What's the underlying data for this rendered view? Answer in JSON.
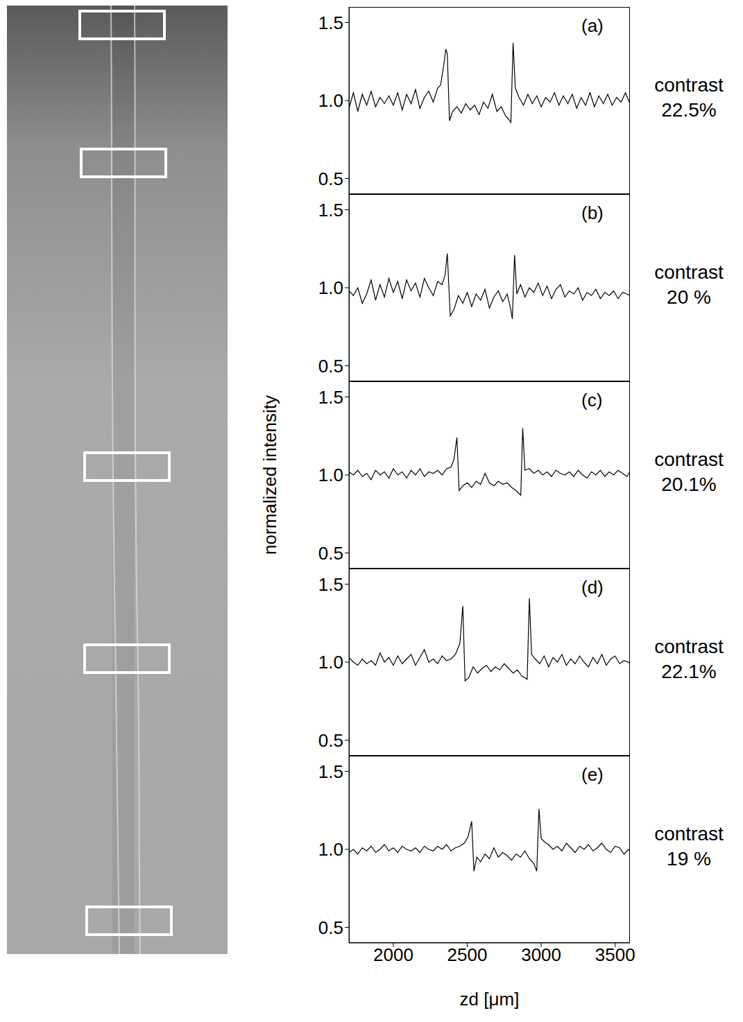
{
  "chart_data": [
    {
      "type": "line",
      "title": "(a)",
      "annotation": "contrast 22.5%",
      "tick_labels": "y",
      "x": [
        1700,
        1730,
        1760,
        1790,
        1820,
        1850,
        1880,
        1910,
        1940,
        1970,
        2000,
        2030,
        2060,
        2090,
        2120,
        2150,
        2180,
        2210,
        2240,
        2270,
        2300,
        2320,
        2340,
        2355,
        2365,
        2380,
        2400,
        2430,
        2460,
        2490,
        2520,
        2550,
        2580,
        2610,
        2640,
        2670,
        2700,
        2730,
        2760,
        2780,
        2795,
        2810,
        2825,
        2850,
        2880,
        2910,
        2940,
        2970,
        3000,
        3030,
        3060,
        3090,
        3120,
        3150,
        3180,
        3210,
        3240,
        3270,
        3300,
        3330,
        3360,
        3390,
        3420,
        3450,
        3480,
        3510,
        3540,
        3570,
        3600
      ],
      "values": [
        0.95,
        1.05,
        0.93,
        1.04,
        0.97,
        1.06,
        0.96,
        1.02,
        0.98,
        1.03,
        0.97,
        1.05,
        0.94,
        1.04,
        0.98,
        1.07,
        0.95,
        1.02,
        1.06,
        0.99,
        1.08,
        1.1,
        1.22,
        1.33,
        1.3,
        0.87,
        0.93,
        0.96,
        0.92,
        0.98,
        0.94,
        0.97,
        0.91,
        0.99,
        0.95,
        1.04,
        0.93,
        0.96,
        0.9,
        0.88,
        0.86,
        1.37,
        1.08,
        1.02,
        0.97,
        1.04,
        0.98,
        1.03,
        0.96,
        1.02,
        0.99,
        1.05,
        0.97,
        1.03,
        0.98,
        1.04,
        0.95,
        1.02,
        0.97,
        1.05,
        0.96,
        1.03,
        0.98,
        1.04,
        0.97,
        1.02,
        0.99,
        1.05,
        0.98
      ],
      "xlim": [
        1700,
        3600
      ],
      "xticks": [
        2000,
        2500,
        3000,
        3500
      ],
      "ylim": [
        0.4,
        1.6
      ],
      "yticks": [
        {
          "value": 0.5,
          "label": "0.5"
        },
        {
          "value": 1.0,
          "label": "1.0"
        },
        {
          "value": 1.5,
          "label": "1.5"
        }
      ],
      "color": "#000000"
    },
    {
      "type": "line",
      "title": "(b)",
      "annotation": "contrast 20 %",
      "tick_labels": "y",
      "x": [
        1700,
        1730,
        1760,
        1790,
        1820,
        1850,
        1880,
        1910,
        1940,
        1970,
        2000,
        2030,
        2060,
        2090,
        2120,
        2150,
        2180,
        2210,
        2240,
        2270,
        2300,
        2330,
        2350,
        2365,
        2385,
        2410,
        2440,
        2470,
        2500,
        2530,
        2560,
        2590,
        2620,
        2650,
        2680,
        2710,
        2740,
        2770,
        2790,
        2805,
        2820,
        2835,
        2860,
        2890,
        2920,
        2950,
        2980,
        3010,
        3040,
        3070,
        3100,
        3130,
        3160,
        3190,
        3220,
        3250,
        3280,
        3310,
        3340,
        3370,
        3400,
        3430,
        3460,
        3490,
        3520,
        3550,
        3580,
        3600
      ],
      "values": [
        0.98,
        0.95,
        1.0,
        0.9,
        0.96,
        1.05,
        0.92,
        1.02,
        0.94,
        1.06,
        0.97,
        1.04,
        0.93,
        1.05,
        0.98,
        1.03,
        0.94,
        1.06,
        1.0,
        0.95,
        1.04,
        1.02,
        1.08,
        1.22,
        0.82,
        0.86,
        0.95,
        0.9,
        0.97,
        0.88,
        0.96,
        0.92,
        0.99,
        0.87,
        0.94,
        0.98,
        0.91,
        0.96,
        0.88,
        0.8,
        1.21,
        0.96,
        1.02,
        0.94,
        1.0,
        0.97,
        1.03,
        0.95,
        1.01,
        0.93,
        0.99,
        1.02,
        0.94,
        0.98,
        0.96,
        1.0,
        0.92,
        0.97,
        0.95,
        0.99,
        0.93,
        0.97,
        0.95,
        0.98,
        0.93,
        0.97,
        0.96,
        0.95
      ],
      "xlim": [
        1700,
        3600
      ],
      "xticks": [
        2000,
        2500,
        3000,
        3500
      ],
      "ylim": [
        0.4,
        1.6
      ],
      "yticks": [
        {
          "value": 0.5,
          "label": "0.5"
        },
        {
          "value": 1.0,
          "label": "1.0"
        },
        {
          "value": 1.5,
          "label": "1.5"
        }
      ],
      "color": "#000000"
    },
    {
      "type": "line",
      "title": "(c)",
      "annotation": "contrast 20.1%",
      "tick_labels": "y",
      "y_label": "normalized intensity",
      "x": [
        1700,
        1730,
        1760,
        1790,
        1820,
        1850,
        1880,
        1910,
        1940,
        1970,
        2000,
        2030,
        2060,
        2090,
        2120,
        2150,
        2180,
        2210,
        2240,
        2270,
        2300,
        2330,
        2360,
        2390,
        2410,
        2430,
        2445,
        2470,
        2500,
        2530,
        2560,
        2590,
        2620,
        2650,
        2680,
        2710,
        2740,
        2770,
        2800,
        2830,
        2850,
        2862,
        2875,
        2890,
        2920,
        2950,
        2980,
        3010,
        3040,
        3070,
        3100,
        3130,
        3160,
        3190,
        3220,
        3250,
        3280,
        3310,
        3340,
        3370,
        3400,
        3430,
        3460,
        3490,
        3520,
        3550,
        3580,
        3600
      ],
      "values": [
        1.02,
        1.0,
        1.03,
        0.99,
        1.01,
        0.97,
        1.03,
        1.0,
        1.02,
        0.98,
        1.04,
        1.0,
        1.02,
        0.98,
        1.03,
        1.0,
        1.04,
        0.99,
        1.02,
        1.01,
        1.03,
        1.0,
        1.04,
        1.05,
        1.1,
        1.24,
        0.9,
        0.93,
        0.95,
        0.92,
        0.96,
        0.94,
        1.01,
        0.95,
        0.93,
        0.96,
        0.94,
        0.95,
        0.92,
        0.9,
        0.88,
        0.87,
        1.3,
        1.03,
        1.04,
        1.01,
        1.03,
        1.0,
        1.02,
        0.99,
        1.03,
        1.01,
        1.0,
        1.02,
        0.99,
        1.03,
        1.0,
        0.98,
        1.02,
        1.0,
        1.03,
        0.99,
        1.02,
        1.0,
        1.03,
        1.01,
        0.99,
        1.02
      ],
      "xlim": [
        1700,
        3600
      ],
      "xticks": [
        2000,
        2500,
        3000,
        3500
      ],
      "ylim": [
        0.4,
        1.6
      ],
      "yticks": [
        {
          "value": 0.5,
          "label": "0.5"
        },
        {
          "value": 1.0,
          "label": "1.0"
        },
        {
          "value": 1.5,
          "label": "1.5"
        }
      ],
      "color": "#000000"
    },
    {
      "type": "line",
      "title": "(d)",
      "annotation": "contrast 22.1%",
      "tick_labels": "y",
      "x": [
        1700,
        1730,
        1760,
        1790,
        1820,
        1850,
        1880,
        1910,
        1940,
        1970,
        2000,
        2030,
        2060,
        2090,
        2120,
        2150,
        2180,
        2210,
        2240,
        2270,
        2300,
        2330,
        2360,
        2390,
        2420,
        2450,
        2470,
        2485,
        2510,
        2540,
        2570,
        2600,
        2630,
        2660,
        2690,
        2720,
        2750,
        2780,
        2810,
        2840,
        2870,
        2890,
        2905,
        2920,
        2935,
        2960,
        2990,
        3020,
        3050,
        3080,
        3110,
        3140,
        3170,
        3200,
        3230,
        3260,
        3290,
        3320,
        3350,
        3380,
        3410,
        3440,
        3470,
        3500,
        3530,
        3560,
        3590,
        3600
      ],
      "values": [
        1.03,
        1.0,
        0.98,
        1.02,
        0.99,
        1.01,
        0.98,
        1.06,
        1.0,
        1.03,
        0.98,
        1.04,
        0.99,
        1.02,
        1.05,
        0.98,
        1.03,
        1.08,
        1.0,
        1.02,
        0.99,
        1.04,
        1.01,
        1.02,
        1.05,
        1.12,
        1.36,
        0.88,
        0.9,
        0.97,
        0.93,
        0.96,
        0.98,
        0.94,
        0.97,
        0.95,
        0.99,
        0.96,
        0.93,
        0.95,
        0.91,
        0.9,
        0.89,
        1.41,
        1.05,
        1.02,
        0.99,
        1.04,
        0.97,
        1.03,
        1.0,
        1.05,
        0.98,
        1.02,
        0.99,
        1.04,
        1.0,
        0.97,
        1.03,
        0.99,
        1.05,
        0.98,
        1.02,
        1.04,
        0.99,
        1.01,
        1.0,
        0.99
      ],
      "xlim": [
        1700,
        3600
      ],
      "xticks": [
        2000,
        2500,
        3000,
        3500
      ],
      "ylim": [
        0.4,
        1.6
      ],
      "yticks": [
        {
          "value": 0.5,
          "label": "0.5"
        },
        {
          "value": 1.0,
          "label": "1.0"
        },
        {
          "value": 1.5,
          "label": "1.5"
        }
      ],
      "color": "#000000"
    },
    {
      "type": "line",
      "title": "(e)",
      "annotation": "contrast 19 %",
      "x_label": "zd [μm]",
      "x": [
        1700,
        1730,
        1760,
        1790,
        1820,
        1850,
        1880,
        1910,
        1940,
        1970,
        2000,
        2030,
        2060,
        2090,
        2120,
        2150,
        2180,
        2210,
        2240,
        2270,
        2300,
        2330,
        2360,
        2390,
        2420,
        2450,
        2480,
        2505,
        2530,
        2545,
        2565,
        2590,
        2620,
        2650,
        2680,
        2710,
        2740,
        2770,
        2800,
        2830,
        2860,
        2890,
        2920,
        2950,
        2970,
        2985,
        3000,
        3020,
        3050,
        3080,
        3110,
        3140,
        3170,
        3200,
        3230,
        3260,
        3290,
        3320,
        3350,
        3380,
        3410,
        3440,
        3470,
        3500,
        3530,
        3560,
        3590,
        3600
      ],
      "values": [
        0.98,
        1.0,
        0.97,
        1.01,
        0.99,
        1.02,
        0.98,
        1.0,
        1.03,
        0.99,
        1.01,
        0.98,
        1.02,
        1.0,
        0.99,
        1.01,
        0.98,
        1.02,
        1.0,
        0.99,
        1.02,
        1.0,
        1.03,
        0.99,
        1.01,
        1.02,
        1.04,
        1.08,
        1.18,
        0.86,
        0.95,
        0.92,
        0.97,
        0.94,
        1.01,
        0.95,
        0.98,
        0.96,
        0.93,
        0.97,
        0.95,
        0.99,
        0.94,
        0.91,
        0.86,
        1.26,
        1.07,
        1.05,
        1.03,
        1.0,
        1.02,
        0.99,
        1.04,
        1.01,
        0.98,
        1.02,
        1.0,
        1.03,
        0.99,
        1.01,
        1.04,
        1.0,
        0.98,
        1.02,
        1.01,
        0.97,
        1.0,
        0.99
      ],
      "xlim": [
        1700,
        3600
      ],
      "xticks": [
        2000,
        2500,
        3000,
        3500
      ],
      "ylim": [
        0.4,
        1.6
      ],
      "yticks": [
        {
          "value": 0.5,
          "label": "0.5"
        },
        {
          "value": 1.0,
          "label": "1.0"
        },
        {
          "value": 1.5,
          "label": "1.5"
        }
      ],
      "color": "#000000"
    }
  ]
}
